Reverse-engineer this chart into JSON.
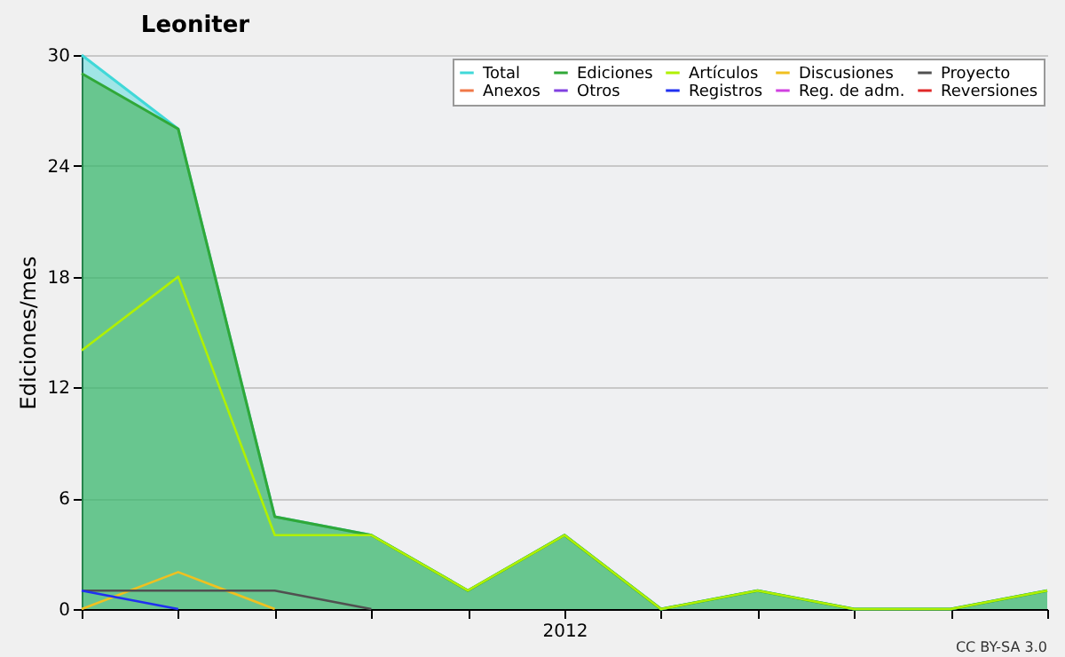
{
  "chart_data": {
    "type": "area",
    "title": "Leoniter",
    "ylabel": "Ediciones/mes",
    "categories": [
      null,
      null,
      null,
      null,
      null,
      "2012",
      null,
      null,
      null,
      null,
      null
    ],
    "series": [
      {
        "name": "Total",
        "color": "#40d8d8",
        "values": [
          30,
          26,
          5,
          4,
          1,
          4,
          0,
          1,
          0,
          0,
          1
        ]
      },
      {
        "name": "Ediciones",
        "color": "#30a838",
        "values": [
          29,
          26,
          5,
          4,
          1,
          4,
          0,
          1,
          0,
          0,
          1
        ]
      },
      {
        "name": "Artículos",
        "type": "line",
        "color": "#b0f000",
        "values": [
          14,
          18,
          4,
          4,
          1,
          4,
          0,
          1,
          0,
          0,
          1
        ]
      },
      {
        "name": "Discusiones",
        "type": "line",
        "color": "#f0c020",
        "values": [
          0,
          2,
          0,
          null,
          null,
          null,
          null,
          null,
          null,
          null,
          null
        ]
      },
      {
        "name": "Proyecto",
        "type": "line",
        "color": "#505050",
        "values": [
          1,
          1,
          1,
          0,
          null,
          null,
          null,
          null,
          null,
          null,
          null
        ]
      },
      {
        "name": "Anexos",
        "type": "line",
        "color": "#f07848",
        "values": [
          null,
          null,
          null,
          null,
          null,
          null,
          null,
          null,
          null,
          null,
          null
        ]
      },
      {
        "name": "Otros",
        "type": "line",
        "color": "#8040e0",
        "values": [
          null,
          null,
          null,
          null,
          null,
          null,
          null,
          null,
          null,
          null,
          null
        ]
      },
      {
        "name": "Registros",
        "type": "line",
        "color": "#2030f0",
        "values": [
          1,
          0,
          null,
          null,
          null,
          null,
          null,
          null,
          null,
          null,
          null
        ]
      },
      {
        "name": "Reg. de adm.",
        "type": "line",
        "color": "#d040e0",
        "values": [
          null,
          null,
          null,
          null,
          null,
          null,
          null,
          null,
          null,
          null,
          null
        ]
      },
      {
        "name": "Reversiones",
        "type": "line",
        "color": "#e02828",
        "values": [
          null,
          null,
          null,
          null,
          null,
          null,
          null,
          null,
          null,
          null,
          null
        ]
      }
    ],
    "ylim": [
      0,
      30
    ],
    "yticks": [
      0,
      6,
      12,
      18,
      24,
      30
    ],
    "grid": "y",
    "legend": "top right",
    "marker": "none",
    "line_style": "solid",
    "annotations": [
      "CC BY-SA 3.0"
    ]
  }
}
